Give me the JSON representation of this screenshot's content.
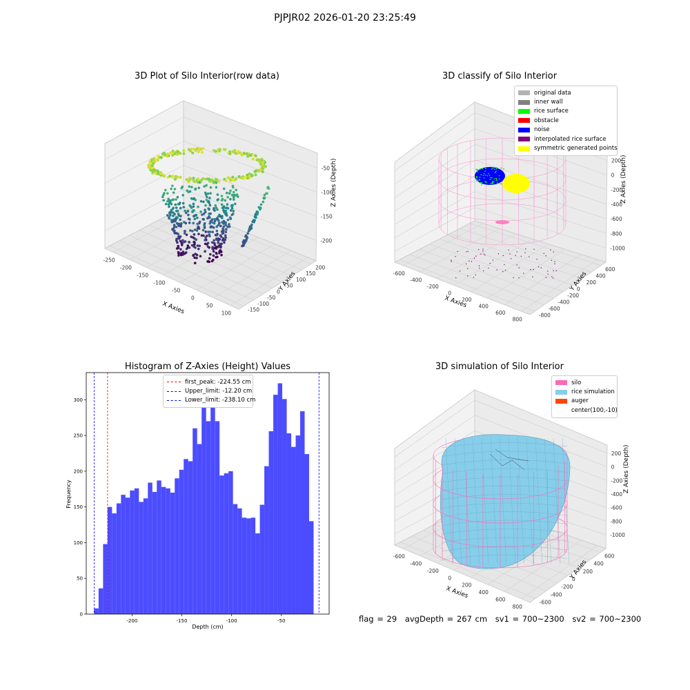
{
  "figure": {
    "suptitle": "PJPJR02 2026-01-20 23:25:49"
  },
  "chart_data": [
    {
      "type": "scatter",
      "title": "3D Plot of Silo Interior(row data)",
      "xlabel": "X Axies",
      "ylabel": "Y Axies",
      "zlabel": "Z Axies (Depth)",
      "x_ticks": [
        "-250",
        "-200",
        "-150",
        "-100",
        "-50",
        "0",
        "50",
        "100"
      ],
      "y_ticks": [
        "-150",
        "-100",
        "-50",
        "0",
        "50",
        "100",
        "150",
        "200"
      ],
      "z_ticks": [
        "-50",
        "-100",
        "-150",
        "-200"
      ],
      "colormap": "viridis"
    },
    {
      "type": "scatter",
      "title": "3D classify of Silo Interior",
      "xlabel": "X Axies",
      "ylabel": "Y Axies",
      "zlabel": "Z Axies (Depth)",
      "x_ticks": [
        "-600",
        "-400",
        "-200",
        "0",
        "200",
        "400",
        "600",
        "800"
      ],
      "y_ticks": [
        "-800",
        "-600",
        "-400",
        "-200",
        "0",
        "200",
        "400",
        "600"
      ],
      "z_ticks": [
        "200",
        "0",
        "-200",
        "-400",
        "-600",
        "-800",
        "-1000"
      ],
      "legend": [
        {
          "label": "original data",
          "color": "#b3b3b3"
        },
        {
          "label": "inner wall",
          "color": "#808080"
        },
        {
          "label": "rice surface",
          "color": "#00ff00"
        },
        {
          "label": "obstacle",
          "color": "#ff0000"
        },
        {
          "label": "noise",
          "color": "#0000ff"
        },
        {
          "label": "interpolated rice surface",
          "color": "#800080"
        },
        {
          "label": "symmetric generated points",
          "color": "#ffff00"
        }
      ]
    },
    {
      "type": "bar",
      "title": "Histogram of Z-Axies (Height) Values",
      "xlabel": "Depth (cm)",
      "ylabel": "Frequency",
      "xlim": [
        -246,
        -2
      ],
      "ylim": [
        0,
        338
      ],
      "x_ticks": [
        -200,
        -150,
        -100,
        -50
      ],
      "y_ticks": [
        0,
        50,
        100,
        150,
        200,
        250,
        300
      ],
      "bar_color": "#4c4cff",
      "bin_start": -238.1,
      "bin_width": 4.5,
      "values": [
        8,
        36,
        98,
        150,
        141,
        155,
        167,
        163,
        173,
        176,
        157,
        162,
        184,
        171,
        187,
        178,
        176,
        170,
        190,
        202,
        217,
        214,
        260,
        238,
        299,
        270,
        291,
        270,
        194,
        197,
        200,
        154,
        148,
        135,
        134,
        135,
        113,
        153,
        207,
        256,
        307,
        323,
        301,
        253,
        234,
        250,
        284,
        224,
        130
      ],
      "vlines": [
        {
          "label": "first_peak: -224.55 cm",
          "x": -224.55,
          "color": "#ff0000"
        },
        {
          "label": "Upper_limit: -12.20 cm",
          "x": -12.2,
          "color": "#0000ff"
        },
        {
          "label": "Lower_limit: -238.10 cm",
          "x": -238.1,
          "color": "#0000ff"
        }
      ]
    },
    {
      "type": "area",
      "title": "3D simulation of Silo Interior",
      "xlabel": "X Axies",
      "ylabel": "Y Axies",
      "zlabel": "Z Axies (Depth)",
      "x_ticks": [
        "-600",
        "-400",
        "-200",
        "0",
        "200",
        "400",
        "600",
        "800"
      ],
      "y_ticks": [
        "-600",
        "-400",
        "-200",
        "0",
        "200",
        "400",
        "600"
      ],
      "z_ticks": [
        "200",
        "0",
        "-200",
        "-400",
        "-600",
        "-800",
        "-1000"
      ],
      "legend": [
        {
          "label": "silo",
          "color": "#ff69b4"
        },
        {
          "label": "rice simulation",
          "color": "#87ceeb"
        },
        {
          "label": "auger",
          "color": "#ff4500"
        },
        {
          "label": "center(100,-10)",
          "color": ""
        }
      ]
    }
  ],
  "caption": {
    "flag": "flag = 29",
    "avg_depth": "avgDepth = 267 cm",
    "sv1": "sv1 = 700~2300",
    "sv2": "sv2 = 700~2300"
  }
}
